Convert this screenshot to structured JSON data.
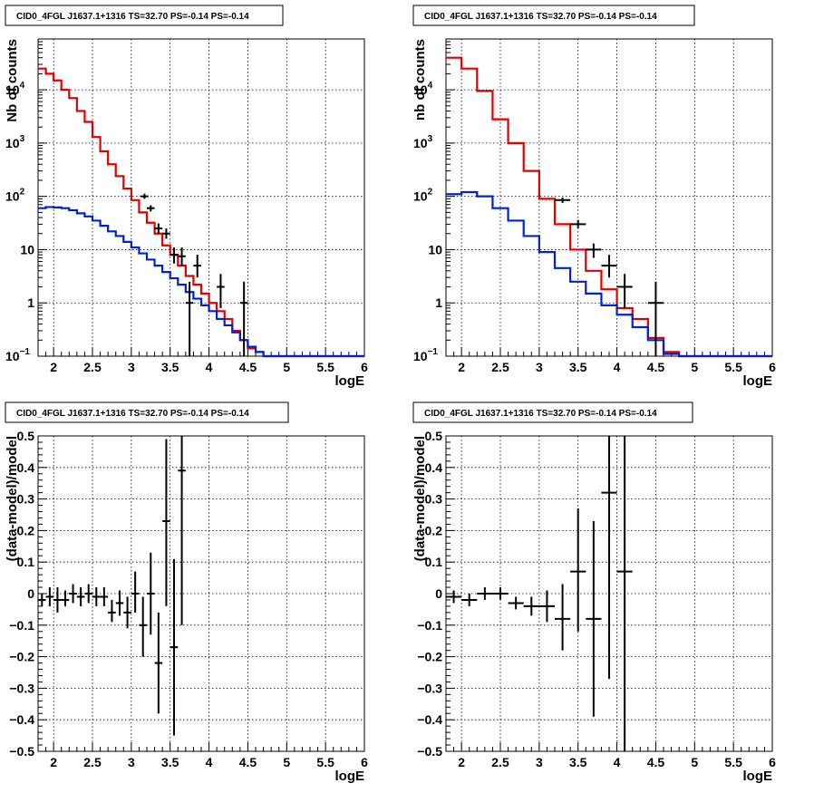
{
  "colors": {
    "data": "#000000",
    "model": "#e00000",
    "background_model": "#0022cc"
  },
  "chart_data": [
    {
      "type": "line",
      "title": "CID0_4FGL J1637.1+1316 TS=32.70 PS=-0.14 PS=-0.14",
      "xlabel": "logE",
      "ylabel": "Nb of counts",
      "log_y": true,
      "xlim": [
        1.8,
        6.0
      ],
      "ylim": [
        0.1,
        90000
      ],
      "xticks": [
        2,
        2.5,
        3,
        3.5,
        4,
        4.5,
        5,
        5.5,
        6
      ],
      "yticks": [
        {
          "v": 0.1,
          "label": "10",
          "sup": "−1"
        },
        {
          "v": 1,
          "label": "1"
        },
        {
          "v": 10,
          "label": "10"
        },
        {
          "v": 100,
          "label": "10",
          "sup": "2"
        },
        {
          "v": 1000,
          "label": "10",
          "sup": "3"
        },
        {
          "v": 10000,
          "label": "10",
          "sup": "4"
        }
      ],
      "grid": true,
      "series": [
        {
          "role": "model",
          "style": "step",
          "bin_width": 0.1,
          "x": [
            1.8,
            1.9,
            2.0,
            2.1,
            2.2,
            2.3,
            2.4,
            2.5,
            2.6,
            2.7,
            2.8,
            2.9,
            3.0,
            3.1,
            3.2,
            3.3,
            3.4,
            3.5,
            3.6,
            3.7,
            3.8,
            3.9,
            4.0,
            4.1,
            4.2,
            4.3,
            4.4,
            4.5,
            4.6,
            4.7,
            4.8,
            4.9,
            5.0,
            5.1,
            5.2,
            5.3,
            5.4,
            5.5,
            5.6,
            5.7,
            5.8,
            5.9
          ],
          "values": [
            25000,
            20000,
            15000,
            10000,
            7000,
            4000,
            2500,
            1300,
            700,
            400,
            240,
            140,
            85,
            50,
            32,
            20,
            12,
            8,
            5,
            3.2,
            2.2,
            1.5,
            1.0,
            0.7,
            0.5,
            0.3,
            0.2,
            0.14,
            0.12,
            0.1,
            0.1,
            0.1,
            0.1,
            0.1,
            0.1,
            0.1,
            0.1,
            0.1,
            0.1,
            0.1,
            0.1,
            0.1
          ]
        },
        {
          "role": "background_model",
          "style": "step",
          "bin_width": 0.1,
          "x": [
            1.8,
            1.9,
            2.0,
            2.1,
            2.2,
            2.3,
            2.4,
            2.5,
            2.6,
            2.7,
            2.8,
            2.9,
            3.0,
            3.1,
            3.2,
            3.3,
            3.4,
            3.5,
            3.6,
            3.7,
            3.8,
            3.9,
            4.0,
            4.1,
            4.2,
            4.3,
            4.4,
            4.5,
            4.6,
            4.7,
            4.8,
            4.9,
            5.0,
            5.1,
            5.2,
            5.3,
            5.4,
            5.5,
            5.6,
            5.7,
            5.8,
            5.9
          ],
          "values": [
            60,
            63,
            62,
            60,
            55,
            48,
            42,
            35,
            28,
            22,
            18,
            14,
            11,
            8.5,
            6.5,
            5,
            3.8,
            2.9,
            2.2,
            1.6,
            1.2,
            0.9,
            0.7,
            0.5,
            0.38,
            0.28,
            0.2,
            0.15,
            0.12,
            0.1,
            0.1,
            0.1,
            0.1,
            0.1,
            0.1,
            0.1,
            0.1,
            0.1,
            0.1,
            0.1,
            0.1,
            0.1
          ]
        },
        {
          "role": "data",
          "style": "points",
          "points": [
            {
              "x": 3.17,
              "y": 100,
              "lo": 90,
              "hi": 112
            },
            {
              "x": 3.25,
              "y": 60,
              "lo": 52,
              "hi": 68
            },
            {
              "x": 3.35,
              "y": 25,
              "lo": 20,
              "hi": 31
            },
            {
              "x": 3.45,
              "y": 20,
              "lo": 16,
              "hi": 25
            },
            {
              "x": 3.55,
              "y": 8,
              "lo": 5.5,
              "hi": 11
            },
            {
              "x": 3.65,
              "y": 7.5,
              "lo": 5,
              "hi": 11
            },
            {
              "x": 3.75,
              "y": 1,
              "lo": 0.1,
              "hi": 2.5
            },
            {
              "x": 3.85,
              "y": 5,
              "lo": 3,
              "hi": 8
            },
            {
              "x": 4.15,
              "y": 2,
              "lo": 0.8,
              "hi": 3.5
            },
            {
              "x": 4.45,
              "y": 1,
              "lo": 0.1,
              "hi": 2.5
            }
          ]
        }
      ]
    },
    {
      "type": "line",
      "title": "CID0_4FGL J1637.1+1316 TS=32.70 PS=-0.14 PS=-0.14",
      "xlabel": "logE",
      "ylabel": "nb of counts",
      "log_y": true,
      "xlim": [
        1.8,
        6.0
      ],
      "ylim": [
        0.1,
        90000
      ],
      "xticks": [
        2,
        2.5,
        3,
        3.5,
        4,
        4.5,
        5,
        5.5,
        6
      ],
      "yticks": [
        {
          "v": 0.1,
          "label": "10",
          "sup": "−1"
        },
        {
          "v": 1,
          "label": "1"
        },
        {
          "v": 10,
          "label": "10"
        },
        {
          "v": 100,
          "label": "10",
          "sup": "2"
        },
        {
          "v": 1000,
          "label": "10",
          "sup": "3"
        },
        {
          "v": 10000,
          "label": "10",
          "sup": "4"
        }
      ],
      "grid": true,
      "series": [
        {
          "role": "model",
          "style": "step",
          "bin_width": 0.2,
          "x": [
            1.8,
            2.0,
            2.2,
            2.4,
            2.6,
            2.8,
            3.0,
            3.2,
            3.4,
            3.6,
            3.8,
            4.0,
            4.2,
            4.4,
            4.6,
            4.8,
            5.0,
            5.2,
            5.4,
            5.6,
            5.8
          ],
          "values": [
            40000,
            25000,
            9500,
            2800,
            1000,
            300,
            90,
            30,
            10,
            4,
            1.8,
            0.8,
            0.5,
            0.22,
            0.12,
            0.1,
            0.1,
            0.1,
            0.1,
            0.1,
            0.1
          ]
        },
        {
          "role": "background_model",
          "style": "step",
          "bin_width": 0.2,
          "x": [
            1.8,
            2.0,
            2.2,
            2.4,
            2.6,
            2.8,
            3.0,
            3.2,
            3.4,
            3.6,
            3.8,
            4.0,
            4.2,
            4.4,
            4.6,
            4.8,
            5.0,
            5.2,
            5.4,
            5.6,
            5.8
          ],
          "values": [
            110,
            120,
            100,
            60,
            35,
            18,
            9,
            4.5,
            2.5,
            1.5,
            0.9,
            0.6,
            0.35,
            0.2,
            0.11,
            0.1,
            0.1,
            0.1,
            0.1,
            0.1,
            0.1
          ]
        },
        {
          "role": "data",
          "style": "points",
          "half_width": 0.1,
          "points": [
            {
              "x": 3.3,
              "y": 85,
              "lo": 75,
              "hi": 95
            },
            {
              "x": 3.5,
              "y": 30,
              "lo": 25,
              "hi": 36
            },
            {
              "x": 3.7,
              "y": 10,
              "lo": 7,
              "hi": 13
            },
            {
              "x": 3.9,
              "y": 5,
              "lo": 3,
              "hi": 8
            },
            {
              "x": 4.1,
              "y": 2,
              "lo": 0.8,
              "hi": 3.5
            },
            {
              "x": 4.5,
              "y": 1,
              "lo": 0.1,
              "hi": 2.5
            }
          ]
        }
      ]
    },
    {
      "type": "scatter",
      "title": "CID0_4FGL J1637.1+1316 TS=32.70 PS=-0.14 PS=-0.14",
      "xlabel": "logE",
      "ylabel": "(data-model)/model",
      "log_y": false,
      "xlim": [
        1.8,
        6.0
      ],
      "ylim": [
        -0.5,
        0.5
      ],
      "xticks": [
        2,
        2.5,
        3,
        3.5,
        4,
        4.5,
        5,
        5.5,
        6
      ],
      "yticks": [
        {
          "v": -0.5,
          "label": "−0.5"
        },
        {
          "v": -0.4,
          "label": "−0.4"
        },
        {
          "v": -0.3,
          "label": "−0.3"
        },
        {
          "v": -0.2,
          "label": "−0.2"
        },
        {
          "v": -0.1,
          "label": "−0.1"
        },
        {
          "v": 0,
          "label": "0"
        },
        {
          "v": 0.1,
          "label": "0.1"
        },
        {
          "v": 0.2,
          "label": "0.2"
        },
        {
          "v": 0.3,
          "label": "0.3"
        },
        {
          "v": 0.4,
          "label": "0.4"
        },
        {
          "v": 0.5,
          "label": "0.5"
        }
      ],
      "grid": true,
      "series": [
        {
          "role": "data",
          "style": "points",
          "half_width": 0.05,
          "points": [
            {
              "x": 1.85,
              "y": -0.02,
              "lo": -0.04,
              "hi": 0.0
            },
            {
              "x": 1.95,
              "y": -0.01,
              "lo": -0.04,
              "hi": 0.02
            },
            {
              "x": 2.05,
              "y": -0.02,
              "lo": -0.06,
              "hi": 0.02
            },
            {
              "x": 2.15,
              "y": -0.02,
              "lo": -0.04,
              "hi": 0.01
            },
            {
              "x": 2.25,
              "y": 0.0,
              "lo": -0.03,
              "hi": 0.03
            },
            {
              "x": 2.35,
              "y": -0.01,
              "lo": -0.04,
              "hi": 0.02
            },
            {
              "x": 2.45,
              "y": 0.0,
              "lo": -0.03,
              "hi": 0.03
            },
            {
              "x": 2.55,
              "y": -0.01,
              "lo": -0.04,
              "hi": 0.02
            },
            {
              "x": 2.65,
              "y": -0.01,
              "lo": -0.04,
              "hi": 0.02
            },
            {
              "x": 2.75,
              "y": -0.06,
              "lo": -0.09,
              "hi": -0.02
            },
            {
              "x": 2.85,
              "y": -0.03,
              "lo": -0.07,
              "hi": 0.01
            },
            {
              "x": 2.95,
              "y": -0.06,
              "lo": -0.11,
              "hi": -0.01
            },
            {
              "x": 3.05,
              "y": 0.0,
              "lo": -0.06,
              "hi": 0.07
            },
            {
              "x": 3.15,
              "y": -0.1,
              "lo": -0.2,
              "hi": -0.01
            },
            {
              "x": 3.25,
              "y": 0.0,
              "lo": -0.13,
              "hi": 0.13
            },
            {
              "x": 3.35,
              "y": -0.22,
              "lo": -0.38,
              "hi": -0.06
            },
            {
              "x": 3.45,
              "y": 0.23,
              "lo": -0.04,
              "hi": 0.49
            },
            {
              "x": 3.55,
              "y": -0.17,
              "lo": -0.45,
              "hi": 0.11
            },
            {
              "x": 3.65,
              "y": 0.39,
              "lo": -0.1,
              "hi": 0.5
            }
          ]
        }
      ]
    },
    {
      "type": "scatter",
      "title": "CID0_4FGL J1637.1+1316 TS=32.70 PS=-0.14 PS=-0.14",
      "xlabel": "logE",
      "ylabel": "(data-model)/model",
      "log_y": false,
      "xlim": [
        1.8,
        6.0
      ],
      "ylim": [
        -0.5,
        0.5
      ],
      "xticks": [
        2,
        2.5,
        3,
        3.5,
        4,
        4.5,
        5,
        5.5,
        6
      ],
      "yticks": [
        {
          "v": -0.5,
          "label": "−0.5"
        },
        {
          "v": -0.4,
          "label": "−0.4"
        },
        {
          "v": -0.3,
          "label": "−0.3"
        },
        {
          "v": -0.2,
          "label": "−0.2"
        },
        {
          "v": -0.1,
          "label": "−0.1"
        },
        {
          "v": 0,
          "label": "0"
        },
        {
          "v": 0.1,
          "label": "0.1"
        },
        {
          "v": 0.2,
          "label": "0.2"
        },
        {
          "v": 0.3,
          "label": "0.3"
        },
        {
          "v": 0.4,
          "label": "0.4"
        },
        {
          "v": 0.5,
          "label": "0.5"
        }
      ],
      "grid": true,
      "series": [
        {
          "role": "data",
          "style": "points",
          "half_width": 0.1,
          "points": [
            {
              "x": 1.9,
              "y": -0.01,
              "lo": -0.03,
              "hi": 0.01
            },
            {
              "x": 2.1,
              "y": -0.02,
              "lo": -0.04,
              "hi": 0.0
            },
            {
              "x": 2.3,
              "y": 0.0,
              "lo": -0.02,
              "hi": 0.02
            },
            {
              "x": 2.5,
              "y": 0.0,
              "lo": -0.02,
              "hi": 0.02
            },
            {
              "x": 2.7,
              "y": -0.03,
              "lo": -0.05,
              "hi": -0.01
            },
            {
              "x": 2.9,
              "y": -0.04,
              "lo": -0.07,
              "hi": -0.01
            },
            {
              "x": 3.1,
              "y": -0.04,
              "lo": -0.09,
              "hi": 0.01
            },
            {
              "x": 3.3,
              "y": -0.08,
              "lo": -0.18,
              "hi": 0.03
            },
            {
              "x": 3.5,
              "y": 0.07,
              "lo": -0.12,
              "hi": 0.27
            },
            {
              "x": 3.7,
              "y": -0.08,
              "lo": -0.39,
              "hi": 0.23
            },
            {
              "x": 3.9,
              "y": 0.32,
              "lo": -0.27,
              "hi": 0.5
            },
            {
              "x": 4.1,
              "y": 0.07,
              "lo": -0.5,
              "hi": 0.5
            }
          ]
        }
      ]
    }
  ]
}
